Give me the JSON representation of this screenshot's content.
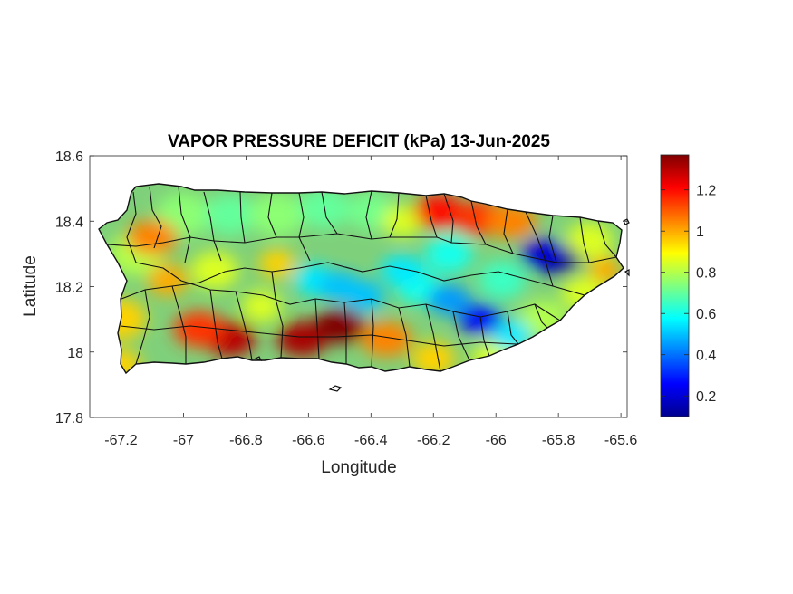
{
  "chart_data": {
    "type": "heatmap",
    "title": "VAPOR PRESSURE DEFICIT (kPa) 13-Jun-2025",
    "xlabel": "Longitude",
    "ylabel": "Latitude",
    "xlim": [
      -67.3,
      -65.58
    ],
    "ylim": [
      17.8,
      18.6
    ],
    "x_ticks": [
      -67.2,
      -67,
      -66.8,
      -66.6,
      -66.4,
      -66.2,
      -66,
      -65.8,
      -65.6
    ],
    "x_tick_labels": [
      "-67.2",
      "-67",
      "-66.8",
      "-66.6",
      "-66.4",
      "-66.2",
      "-66",
      "-65.8",
      "-65.6"
    ],
    "y_ticks": [
      17.8,
      18,
      18.2,
      18.4,
      18.6
    ],
    "y_tick_labels": [
      "17.8",
      "18",
      "18.2",
      "18.4",
      "18.6"
    ],
    "grid": false,
    "colormap": "jet",
    "colorbar": {
      "range": [
        0.1,
        1.37
      ],
      "ticks": [
        0.2,
        0.4,
        0.6,
        0.8,
        1,
        1.2
      ],
      "tick_labels": [
        "0.2",
        "0.4",
        "0.6",
        "0.8",
        "1",
        "1.2"
      ]
    },
    "field_features": [
      {
        "feature": "south-coast-high",
        "lon": -66.85,
        "lat": 18.04,
        "value": 1.3
      },
      {
        "feature": "south-coast-high",
        "lon": -66.62,
        "lat": 18.04,
        "value": 1.32
      },
      {
        "feature": "south-coast-high",
        "lon": -66.5,
        "lat": 18.08,
        "value": 1.37
      },
      {
        "feature": "south-coast-high",
        "lon": -66.95,
        "lat": 18.07,
        "value": 1.15
      },
      {
        "feature": "south-coast-high",
        "lon": -66.35,
        "lat": 18.04,
        "value": 1.05
      },
      {
        "feature": "north-coast-high",
        "lon": -66.18,
        "lat": 18.43,
        "value": 1.2
      },
      {
        "feature": "north-coast-high",
        "lon": -66.05,
        "lat": 18.41,
        "value": 1.15
      },
      {
        "feature": "north-coast-high",
        "lon": -65.95,
        "lat": 18.4,
        "value": 1.05
      },
      {
        "feature": "west-high",
        "lon": -67.1,
        "lat": 18.35,
        "value": 1.05
      },
      {
        "feature": "central-low",
        "lon": -66.5,
        "lat": 18.2,
        "value": 0.5
      },
      {
        "feature": "central-low",
        "lon": -66.3,
        "lat": 18.25,
        "value": 0.55
      },
      {
        "feature": "central-low",
        "lon": -66.15,
        "lat": 18.16,
        "value": 0.45
      },
      {
        "feature": "central-low",
        "lon": -66.05,
        "lat": 18.1,
        "value": 0.25
      },
      {
        "feature": "east-low",
        "lon": -65.8,
        "lat": 18.28,
        "value": 0.1
      },
      {
        "feature": "east-low",
        "lon": -65.85,
        "lat": 18.3,
        "value": 0.2
      }
    ]
  }
}
